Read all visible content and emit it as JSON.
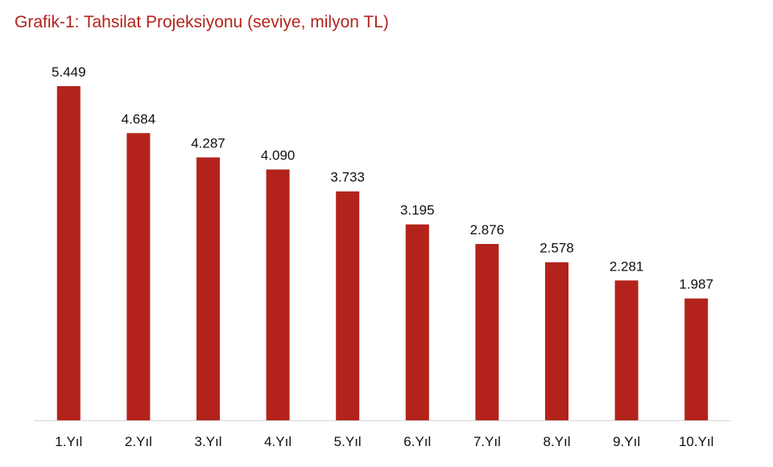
{
  "title": "Grafik-1: Tahsilat Projeksiyonu (seviye, milyon TL)",
  "colors": {
    "title": "#b3231b",
    "bar": "#b3231b",
    "axis": "#d6d6d6"
  },
  "chart_data": {
    "type": "bar",
    "title": "Grafik-1: Tahsilat Projeksiyonu (seviye, milyon TL)",
    "xlabel": "",
    "ylabel": "",
    "categories": [
      "1.Yıl",
      "2.Yıl",
      "3.Yıl",
      "4.Yıl",
      "5.Yıl",
      "6.Yıl",
      "7.Yıl",
      "8.Yıl",
      "9.Yıl",
      "10.Yıl"
    ],
    "values": [
      5449,
      4684,
      4287,
      4090,
      3733,
      3195,
      2876,
      2578,
      2281,
      1987
    ],
    "value_labels": [
      "5.449",
      "4.684",
      "4.287",
      "4.090",
      "3.733",
      "3.195",
      "2.876",
      "2.578",
      "2.281",
      "1.987"
    ],
    "ylim": [
      0,
      5449
    ],
    "grid": false,
    "legend": "none"
  }
}
